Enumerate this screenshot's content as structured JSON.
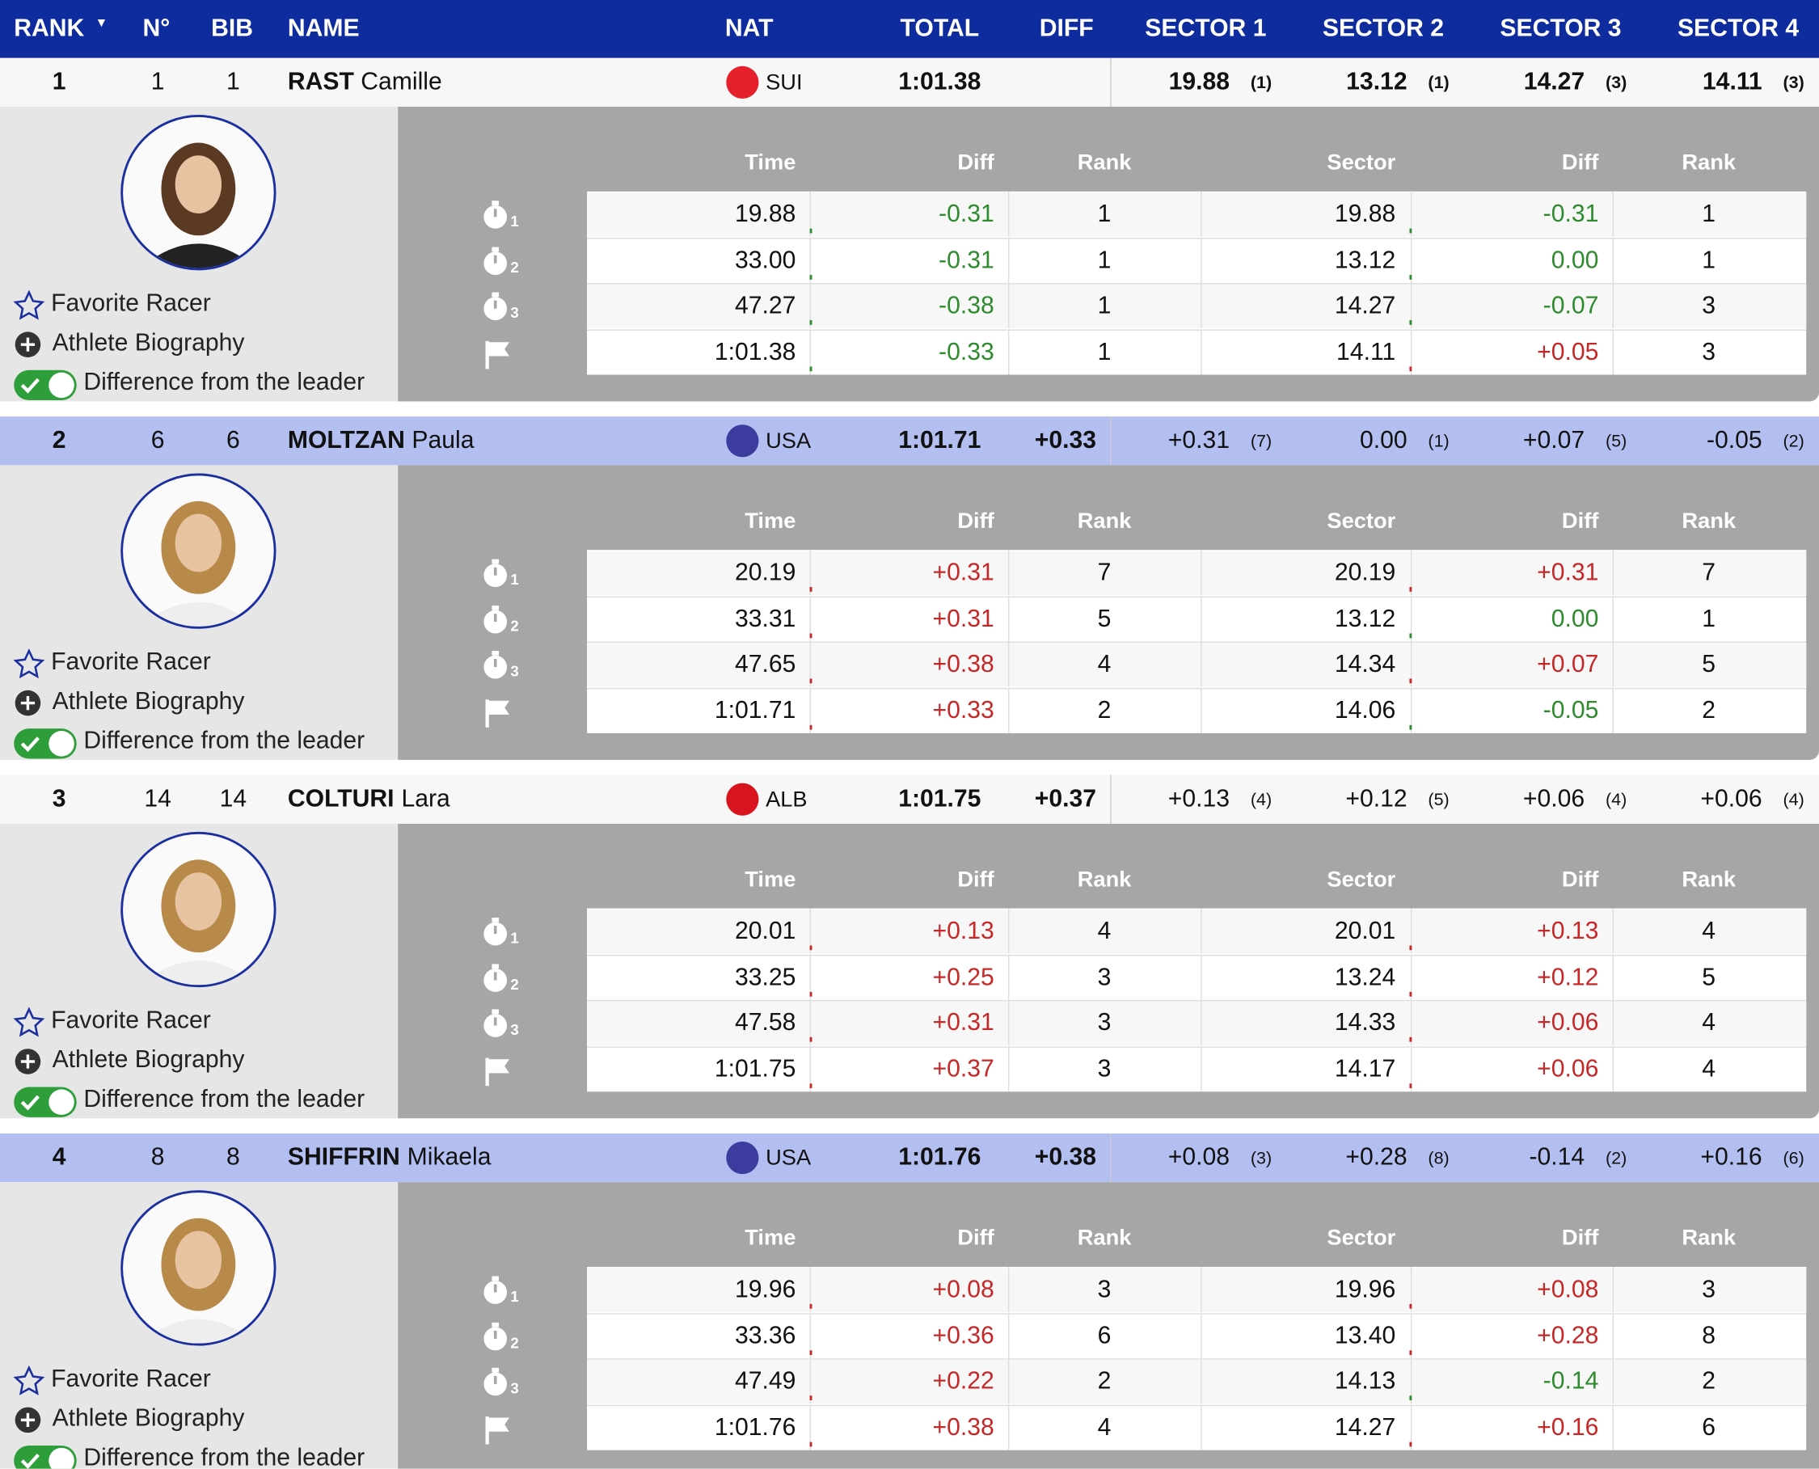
{
  "header": {
    "columns": [
      "RANK",
      "N°",
      "BIB",
      "NAME",
      "NAT",
      "TOTAL",
      "DIFF",
      "SECTOR 1",
      "SECTOR 2",
      "SECTOR 3",
      "SECTOR 4"
    ]
  },
  "detail_labels": {
    "favorite": "Favorite Racer",
    "biography": "Athlete Biography",
    "toggle": "Difference from the leader",
    "columns": [
      "Time",
      "Diff",
      "Rank",
      "Sector",
      "Diff",
      "Rank"
    ],
    "icon_sub": [
      "1",
      "2",
      "3"
    ]
  },
  "racers": [
    {
      "rank": "1",
      "no": "1",
      "bib": "1",
      "last": "RAST",
      "first": "Camille",
      "nat": "SUI",
      "total": "1:01.38",
      "diff": "",
      "sectors": [
        [
          "19.88",
          "(1)"
        ],
        [
          "13.12",
          "(1)"
        ],
        [
          "14.27",
          "(3)"
        ],
        [
          "14.11",
          "(3)"
        ]
      ],
      "splits": [
        [
          "19.88",
          "-0.31",
          "1",
          "19.88",
          "-0.31",
          "1"
        ],
        [
          "33.00",
          "-0.31",
          "1",
          "13.12",
          "0.00",
          "1"
        ],
        [
          "47.27",
          "-0.38",
          "1",
          "14.27",
          "-0.07",
          "3"
        ],
        [
          "1:01.38",
          "-0.33",
          "1",
          "14.11",
          "+0.05",
          "3"
        ]
      ]
    },
    {
      "rank": "2",
      "no": "6",
      "bib": "6",
      "last": "MOLTZAN",
      "first": "Paula",
      "nat": "USA",
      "total": "1:01.71",
      "diff": "+0.33",
      "sectors": [
        [
          "+0.31",
          "(7)"
        ],
        [
          "0.00",
          "(1)"
        ],
        [
          "+0.07",
          "(5)"
        ],
        [
          "-0.05",
          "(2)"
        ]
      ],
      "splits": [
        [
          "20.19",
          "+0.31",
          "7",
          "20.19",
          "+0.31",
          "7"
        ],
        [
          "33.31",
          "+0.31",
          "5",
          "13.12",
          "0.00",
          "1"
        ],
        [
          "47.65",
          "+0.38",
          "4",
          "14.34",
          "+0.07",
          "5"
        ],
        [
          "1:01.71",
          "+0.33",
          "2",
          "14.06",
          "-0.05",
          "2"
        ]
      ]
    },
    {
      "rank": "3",
      "no": "14",
      "bib": "14",
      "last": "COLTURI",
      "first": "Lara",
      "nat": "ALB",
      "total": "1:01.75",
      "diff": "+0.37",
      "sectors": [
        [
          "+0.13",
          "(4)"
        ],
        [
          "+0.12",
          "(5)"
        ],
        [
          "+0.06",
          "(4)"
        ],
        [
          "+0.06",
          "(4)"
        ]
      ],
      "splits": [
        [
          "20.01",
          "+0.13",
          "4",
          "20.01",
          "+0.13",
          "4"
        ],
        [
          "33.25",
          "+0.25",
          "3",
          "13.24",
          "+0.12",
          "5"
        ],
        [
          "47.58",
          "+0.31",
          "3",
          "14.33",
          "+0.06",
          "4"
        ],
        [
          "1:01.75",
          "+0.37",
          "3",
          "14.17",
          "+0.06",
          "4"
        ]
      ]
    },
    {
      "rank": "4",
      "no": "8",
      "bib": "8",
      "last": "SHIFFRIN",
      "first": "Mikaela",
      "nat": "USA",
      "total": "1:01.76",
      "diff": "+0.38",
      "sectors": [
        [
          "+0.08",
          "(3)"
        ],
        [
          "+0.28",
          "(8)"
        ],
        [
          "-0.14",
          "(2)"
        ],
        [
          "+0.16",
          "(6)"
        ]
      ],
      "splits": [
        [
          "19.96",
          "+0.08",
          "3",
          "19.96",
          "+0.08",
          "3"
        ],
        [
          "33.36",
          "+0.36",
          "6",
          "13.40",
          "+0.28",
          "8"
        ],
        [
          "47.49",
          "+0.22",
          "2",
          "14.13",
          "-0.14",
          "2"
        ],
        [
          "1:01.76",
          "+0.38",
          "4",
          "14.27",
          "+0.16",
          "6"
        ]
      ]
    }
  ]
}
